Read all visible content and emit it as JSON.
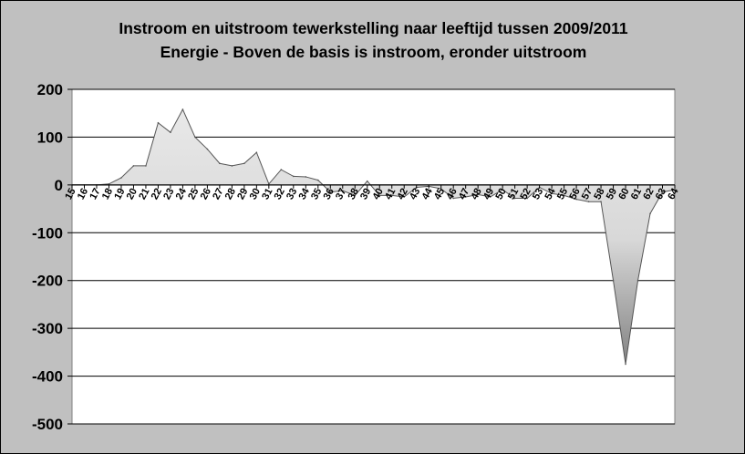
{
  "chart_data": {
    "type": "area",
    "title": "Instroom en uitstroom tewerkstelling naar leeftijd tussen 2009/2011",
    "subtitle": "Energie - Boven de basis is instroom, eronder uitstroom",
    "xlabel": "",
    "ylabel": "",
    "ylim": [
      -500,
      200
    ],
    "yticks": [
      200,
      100,
      0,
      -100,
      -200,
      -300,
      -400,
      -500
    ],
    "grid": true,
    "legend": "none",
    "x": [
      15,
      16,
      17,
      18,
      19,
      20,
      21,
      22,
      23,
      24,
      25,
      26,
      27,
      28,
      29,
      30,
      31,
      32,
      33,
      34,
      35,
      36,
      37,
      38,
      39,
      40,
      41,
      42,
      43,
      44,
      45,
      46,
      47,
      48,
      49,
      50,
      51,
      52,
      53,
      54,
      55,
      56,
      57,
      58,
      59,
      60,
      61,
      62,
      63,
      64
    ],
    "values": [
      0,
      0,
      0,
      2,
      15,
      40,
      40,
      130,
      110,
      158,
      100,
      75,
      45,
      40,
      45,
      68,
      2,
      32,
      18,
      17,
      10,
      -15,
      -12,
      -22,
      8,
      -22,
      -22,
      -25,
      -5,
      -3,
      -8,
      -28,
      -25,
      -20,
      -25,
      -10,
      -28,
      -28,
      -5,
      -18,
      -22,
      -30,
      -35,
      -35,
      -200,
      -375,
      -200,
      -60,
      -15,
      -10
    ],
    "colors": {
      "plot_background": "#ffffff",
      "area_top": "#ebebeb",
      "area_bottom": "#5a5a5a",
      "line": "#555555",
      "grid": "#000000"
    }
  }
}
